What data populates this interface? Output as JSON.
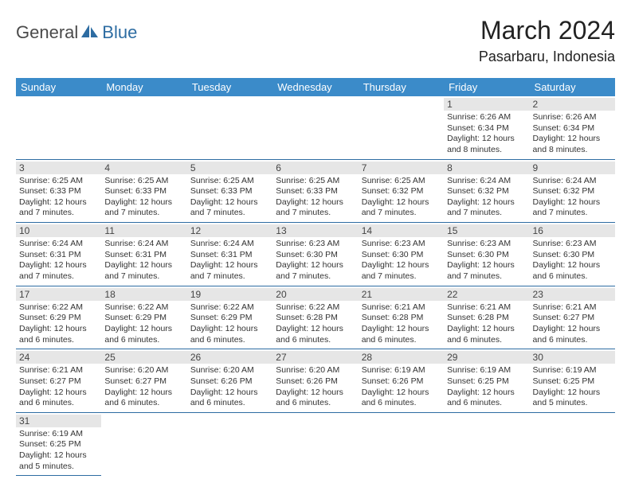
{
  "logo": {
    "part1": "General",
    "part2": "Blue"
  },
  "title": "March 2024",
  "location": "Pasarbaru, Indonesia",
  "colors": {
    "header_bg": "#3b8bc9",
    "header_text": "#ffffff",
    "daynum_bg": "#e6e6e6",
    "row_divider": "#2d6ca2",
    "logo_gray": "#4a4a4a",
    "logo_blue": "#2d6ca2"
  },
  "weekdays": [
    "Sunday",
    "Monday",
    "Tuesday",
    "Wednesday",
    "Thursday",
    "Friday",
    "Saturday"
  ],
  "weeks": [
    [
      null,
      null,
      null,
      null,
      null,
      {
        "n": "1",
        "sr": "Sunrise: 6:26 AM",
        "ss": "Sunset: 6:34 PM",
        "dl": "Daylight: 12 hours and 8 minutes."
      },
      {
        "n": "2",
        "sr": "Sunrise: 6:26 AM",
        "ss": "Sunset: 6:34 PM",
        "dl": "Daylight: 12 hours and 8 minutes."
      }
    ],
    [
      {
        "n": "3",
        "sr": "Sunrise: 6:25 AM",
        "ss": "Sunset: 6:33 PM",
        "dl": "Daylight: 12 hours and 7 minutes."
      },
      {
        "n": "4",
        "sr": "Sunrise: 6:25 AM",
        "ss": "Sunset: 6:33 PM",
        "dl": "Daylight: 12 hours and 7 minutes."
      },
      {
        "n": "5",
        "sr": "Sunrise: 6:25 AM",
        "ss": "Sunset: 6:33 PM",
        "dl": "Daylight: 12 hours and 7 minutes."
      },
      {
        "n": "6",
        "sr": "Sunrise: 6:25 AM",
        "ss": "Sunset: 6:33 PM",
        "dl": "Daylight: 12 hours and 7 minutes."
      },
      {
        "n": "7",
        "sr": "Sunrise: 6:25 AM",
        "ss": "Sunset: 6:32 PM",
        "dl": "Daylight: 12 hours and 7 minutes."
      },
      {
        "n": "8",
        "sr": "Sunrise: 6:24 AM",
        "ss": "Sunset: 6:32 PM",
        "dl": "Daylight: 12 hours and 7 minutes."
      },
      {
        "n": "9",
        "sr": "Sunrise: 6:24 AM",
        "ss": "Sunset: 6:32 PM",
        "dl": "Daylight: 12 hours and 7 minutes."
      }
    ],
    [
      {
        "n": "10",
        "sr": "Sunrise: 6:24 AM",
        "ss": "Sunset: 6:31 PM",
        "dl": "Daylight: 12 hours and 7 minutes."
      },
      {
        "n": "11",
        "sr": "Sunrise: 6:24 AM",
        "ss": "Sunset: 6:31 PM",
        "dl": "Daylight: 12 hours and 7 minutes."
      },
      {
        "n": "12",
        "sr": "Sunrise: 6:24 AM",
        "ss": "Sunset: 6:31 PM",
        "dl": "Daylight: 12 hours and 7 minutes."
      },
      {
        "n": "13",
        "sr": "Sunrise: 6:23 AM",
        "ss": "Sunset: 6:30 PM",
        "dl": "Daylight: 12 hours and 7 minutes."
      },
      {
        "n": "14",
        "sr": "Sunrise: 6:23 AM",
        "ss": "Sunset: 6:30 PM",
        "dl": "Daylight: 12 hours and 7 minutes."
      },
      {
        "n": "15",
        "sr": "Sunrise: 6:23 AM",
        "ss": "Sunset: 6:30 PM",
        "dl": "Daylight: 12 hours and 7 minutes."
      },
      {
        "n": "16",
        "sr": "Sunrise: 6:23 AM",
        "ss": "Sunset: 6:30 PM",
        "dl": "Daylight: 12 hours and 6 minutes."
      }
    ],
    [
      {
        "n": "17",
        "sr": "Sunrise: 6:22 AM",
        "ss": "Sunset: 6:29 PM",
        "dl": "Daylight: 12 hours and 6 minutes."
      },
      {
        "n": "18",
        "sr": "Sunrise: 6:22 AM",
        "ss": "Sunset: 6:29 PM",
        "dl": "Daylight: 12 hours and 6 minutes."
      },
      {
        "n": "19",
        "sr": "Sunrise: 6:22 AM",
        "ss": "Sunset: 6:29 PM",
        "dl": "Daylight: 12 hours and 6 minutes."
      },
      {
        "n": "20",
        "sr": "Sunrise: 6:22 AM",
        "ss": "Sunset: 6:28 PM",
        "dl": "Daylight: 12 hours and 6 minutes."
      },
      {
        "n": "21",
        "sr": "Sunrise: 6:21 AM",
        "ss": "Sunset: 6:28 PM",
        "dl": "Daylight: 12 hours and 6 minutes."
      },
      {
        "n": "22",
        "sr": "Sunrise: 6:21 AM",
        "ss": "Sunset: 6:28 PM",
        "dl": "Daylight: 12 hours and 6 minutes."
      },
      {
        "n": "23",
        "sr": "Sunrise: 6:21 AM",
        "ss": "Sunset: 6:27 PM",
        "dl": "Daylight: 12 hours and 6 minutes."
      }
    ],
    [
      {
        "n": "24",
        "sr": "Sunrise: 6:21 AM",
        "ss": "Sunset: 6:27 PM",
        "dl": "Daylight: 12 hours and 6 minutes."
      },
      {
        "n": "25",
        "sr": "Sunrise: 6:20 AM",
        "ss": "Sunset: 6:27 PM",
        "dl": "Daylight: 12 hours and 6 minutes."
      },
      {
        "n": "26",
        "sr": "Sunrise: 6:20 AM",
        "ss": "Sunset: 6:26 PM",
        "dl": "Daylight: 12 hours and 6 minutes."
      },
      {
        "n": "27",
        "sr": "Sunrise: 6:20 AM",
        "ss": "Sunset: 6:26 PM",
        "dl": "Daylight: 12 hours and 6 minutes."
      },
      {
        "n": "28",
        "sr": "Sunrise: 6:19 AM",
        "ss": "Sunset: 6:26 PM",
        "dl": "Daylight: 12 hours and 6 minutes."
      },
      {
        "n": "29",
        "sr": "Sunrise: 6:19 AM",
        "ss": "Sunset: 6:25 PM",
        "dl": "Daylight: 12 hours and 6 minutes."
      },
      {
        "n": "30",
        "sr": "Sunrise: 6:19 AM",
        "ss": "Sunset: 6:25 PM",
        "dl": "Daylight: 12 hours and 5 minutes."
      }
    ],
    [
      {
        "n": "31",
        "sr": "Sunrise: 6:19 AM",
        "ss": "Sunset: 6:25 PM",
        "dl": "Daylight: 12 hours and 5 minutes."
      },
      null,
      null,
      null,
      null,
      null,
      null
    ]
  ]
}
